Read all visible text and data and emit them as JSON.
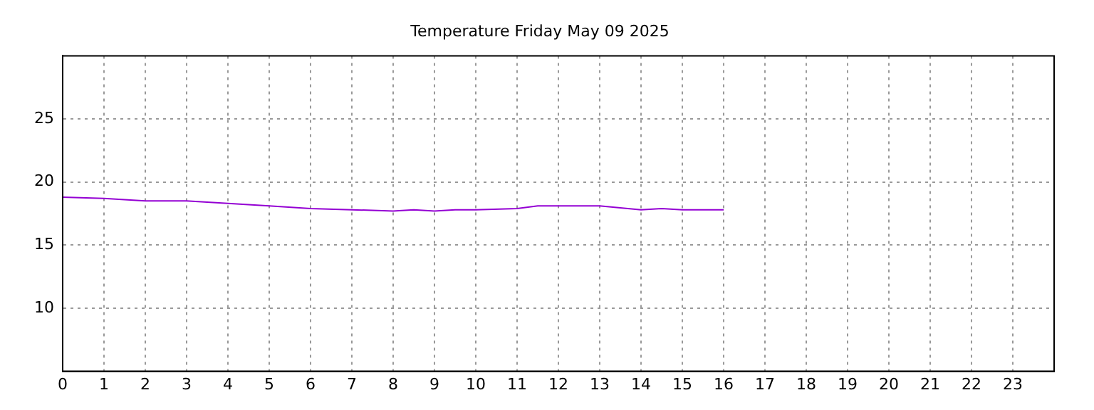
{
  "chart_data": {
    "type": "line",
    "title": "Temperature Friday May 09 2025",
    "x": [
      0,
      1,
      2,
      3,
      4,
      5,
      6,
      7,
      8,
      8.5,
      9,
      9.5,
      10,
      11,
      11.5,
      12,
      13,
      14,
      14.5,
      15,
      16
    ],
    "series": [
      {
        "color": "#9400d3",
        "values": [
          18.8,
          18.7,
          18.5,
          18.5,
          18.3,
          18.1,
          17.9,
          17.8,
          17.7,
          17.8,
          17.7,
          17.8,
          17.8,
          17.9,
          18.1,
          18.1,
          18.1,
          17.8,
          17.9,
          17.8,
          17.8
        ]
      }
    ],
    "xlim": [
      0,
      24
    ],
    "xticks": [
      0,
      1,
      2,
      3,
      4,
      5,
      6,
      7,
      8,
      9,
      10,
      11,
      12,
      13,
      14,
      15,
      16,
      17,
      18,
      19,
      20,
      21,
      22,
      23
    ],
    "ylim": [
      5,
      30
    ],
    "yticks": [
      10,
      15,
      20,
      25
    ],
    "grid": true,
    "legend": false,
    "marker": "none",
    "line_style": "solid"
  }
}
